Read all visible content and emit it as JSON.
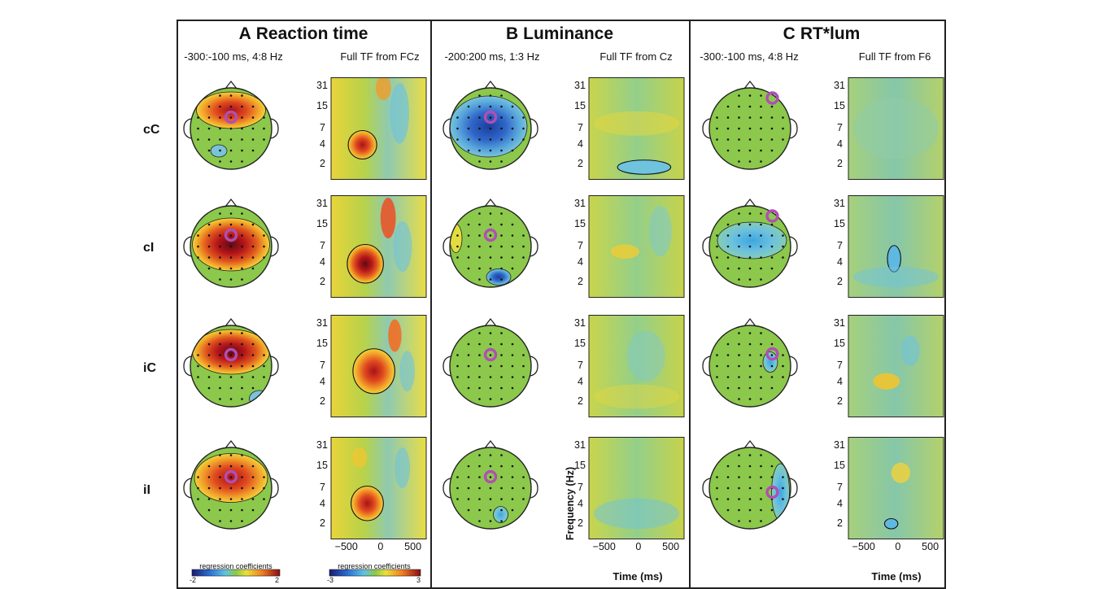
{
  "panels": [
    {
      "letter": "A",
      "title": "Reaction time",
      "topo_header": "-300:-100 ms, 4:8 Hz",
      "tf_header": "Full TF from FCz"
    },
    {
      "letter": "B",
      "title": "Luminance",
      "topo_header": "-200:200 ms, 1:3 Hz",
      "tf_header": "Full TF from Cz"
    },
    {
      "letter": "C",
      "title": "RT*lum",
      "topo_header": "-300:-100 ms, 4:8 Hz",
      "tf_header": "Full TF from F6"
    }
  ],
  "rows": [
    "cC",
    "cI",
    "iC",
    "iI"
  ],
  "freq_ticks": [
    "31",
    "15",
    "7",
    "4",
    "2"
  ],
  "time_ticks": [
    "−500",
    "0",
    "500"
  ],
  "ylabel": "Frequency (Hz)",
  "xlabel": "Time (ms)",
  "colorbars": [
    {
      "label": "regression coefficients",
      "min": "-2",
      "max": "2"
    },
    {
      "label": "regression coefficients",
      "min": "-3",
      "max": "3"
    }
  ],
  "colors": {
    "neutral": "#8cc84b",
    "positive": "#d7191c",
    "negative": "#2b6fd6",
    "marker": "#b04fb5"
  }
}
